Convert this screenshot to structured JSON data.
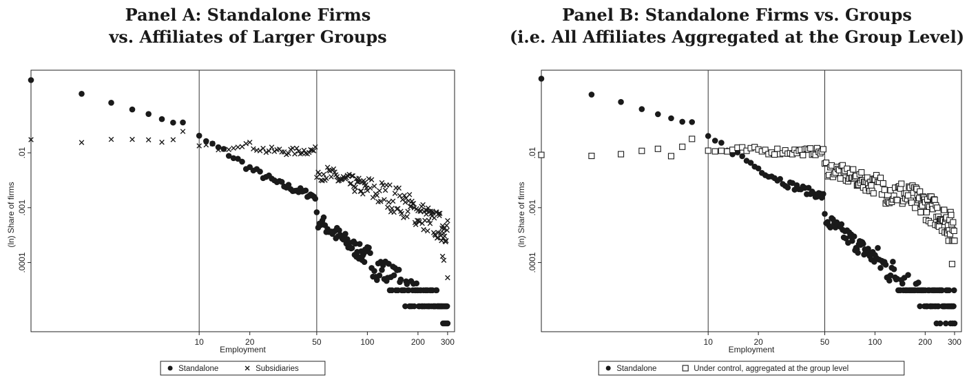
{
  "panels": [
    {
      "title_line1": "Panel A: Standalone Firms",
      "title_line2": "vs. Affiliates of Larger Groups"
    },
    {
      "title_line1": "Panel B: Standalone Firms vs. Groups",
      "title_line2": "(i.e. All Affiliates Aggregated at the Group Level)"
    }
  ],
  "chart_data": [
    {
      "type": "scatter",
      "title": "Panel A: Standalone Firms vs. Affiliates of Larger Groups",
      "xlabel": "Employment",
      "ylabel": "(ln) Share of firms",
      "x_scale": "log",
      "y_scale": "log",
      "xlim": [
        1,
        330
      ],
      "ylim": [
        5.5e-06,
        0.32
      ],
      "x_ticks": [
        10,
        20,
        50,
        100,
        200,
        300
      ],
      "x_tick_labels": [
        "10",
        "20",
        "50",
        "100",
        "200",
        "300"
      ],
      "y_ticks": [
        0.01,
        0.001,
        0.0001
      ],
      "y_tick_labels": [
        ".01",
        ".001",
        ".0001"
      ],
      "reference_lines_x": [
        10,
        50
      ],
      "grid": false,
      "legend_position": "bottom-center",
      "series": [
        {
          "name": "Standalone",
          "marker": "filled-circle",
          "trend": [
            [
              1,
              0.22
            ],
            [
              2,
              0.115
            ],
            [
              3,
              0.083
            ],
            [
              4,
              0.063
            ],
            [
              5,
              0.05
            ],
            [
              6,
              0.041
            ],
            [
              7,
              0.036
            ],
            [
              8,
              0.035
            ],
            [
              10,
              0.019
            ],
            [
              15,
              0.0095
            ],
            [
              20,
              0.0052
            ],
            [
              30,
              0.0027
            ],
            [
              49,
              0.0016
            ],
            [
              50,
              0.00062
            ],
            [
              70,
              0.00028
            ],
            [
              100,
              0.00012
            ],
            [
              150,
              4.5e-05
            ],
            [
              200,
              2.2e-05
            ],
            [
              300,
              1.5e-05
            ]
          ],
          "floor_levels": [
            3.13e-05,
            1.6e-05,
            7.8e-06
          ]
        },
        {
          "name": "Subsidiaries",
          "marker": "cross",
          "trend": [
            [
              1,
              0.017
            ],
            [
              2,
              0.015
            ],
            [
              3,
              0.017
            ],
            [
              4,
              0.017
            ],
            [
              5,
              0.017
            ],
            [
              6,
              0.015
            ],
            [
              7,
              0.018
            ],
            [
              8,
              0.024
            ],
            [
              10,
              0.013
            ],
            [
              15,
              0.013
            ],
            [
              18,
              0.015
            ],
            [
              25,
              0.011
            ],
            [
              35,
              0.0105
            ],
            [
              49,
              0.011
            ],
            [
              50,
              0.0048
            ],
            [
              75,
              0.003
            ],
            [
              100,
              0.0022
            ],
            [
              150,
              0.0014
            ],
            [
              200,
              0.0008
            ],
            [
              250,
              0.0005
            ],
            [
              300,
              0.0004
            ]
          ],
          "tail": [
            [
              280,
              0.00013
            ],
            [
              285,
              0.00011
            ],
            [
              300,
              5.3e-05
            ]
          ]
        }
      ]
    },
    {
      "type": "scatter",
      "title": "Panel B: Standalone Firms vs. Groups (i.e. All Affiliates Aggregated at the Group Level)",
      "xlabel": "Employment",
      "ylabel": "(ln) Share of firms",
      "x_scale": "log",
      "y_scale": "log",
      "xlim": [
        1,
        330
      ],
      "ylim": [
        5.5e-06,
        0.32
      ],
      "x_ticks": [
        10,
        20,
        50,
        100,
        200,
        300
      ],
      "x_tick_labels": [
        "10",
        "20",
        "50",
        "100",
        "200",
        "300"
      ],
      "y_ticks": [
        0.01,
        0.001,
        0.0001
      ],
      "y_tick_labels": [
        ".01",
        ".001",
        ".0001"
      ],
      "reference_lines_x": [
        10,
        50
      ],
      "grid": false,
      "legend_position": "bottom-center",
      "series": [
        {
          "name": "Standalone",
          "marker": "filled-circle",
          "trend": [
            [
              1,
              0.22
            ],
            [
              2,
              0.115
            ],
            [
              3,
              0.083
            ],
            [
              4,
              0.063
            ],
            [
              5,
              0.05
            ],
            [
              6,
              0.041
            ],
            [
              7,
              0.036
            ],
            [
              8,
              0.035
            ],
            [
              10,
              0.019
            ],
            [
              15,
              0.0095
            ],
            [
              20,
              0.0052
            ],
            [
              30,
              0.0027
            ],
            [
              49,
              0.0016
            ],
            [
              50,
              0.00062
            ],
            [
              70,
              0.00028
            ],
            [
              100,
              0.00012
            ],
            [
              150,
              4.5e-05
            ],
            [
              200,
              2.2e-05
            ],
            [
              300,
              1.5e-05
            ]
          ],
          "floor_levels": [
            3.13e-05,
            1.6e-05,
            7.8e-06
          ]
        },
        {
          "name": "Under control, aggregated at the group level",
          "marker": "hollow-square",
          "trend": [
            [
              1,
              0.0093
            ],
            [
              2,
              0.0087
            ],
            [
              3,
              0.0095
            ],
            [
              4,
              0.011
            ],
            [
              5,
              0.012
            ],
            [
              6,
              0.009
            ],
            [
              7,
              0.013
            ],
            [
              8,
              0.018
            ],
            [
              10,
              0.0105
            ],
            [
              15,
              0.011
            ],
            [
              20,
              0.011
            ],
            [
              30,
              0.0105
            ],
            [
              49,
              0.0105
            ],
            [
              50,
              0.0055
            ],
            [
              75,
              0.0035
            ],
            [
              100,
              0.0025
            ],
            [
              150,
              0.0017
            ],
            [
              200,
              0.0011
            ],
            [
              250,
              0.0007
            ],
            [
              300,
              0.0004
            ]
          ],
          "tail": [
            [
              290,
              9.4e-05
            ]
          ],
          "floor_levels": [
            0.00025,
            0.0002
          ]
        }
      ]
    }
  ]
}
